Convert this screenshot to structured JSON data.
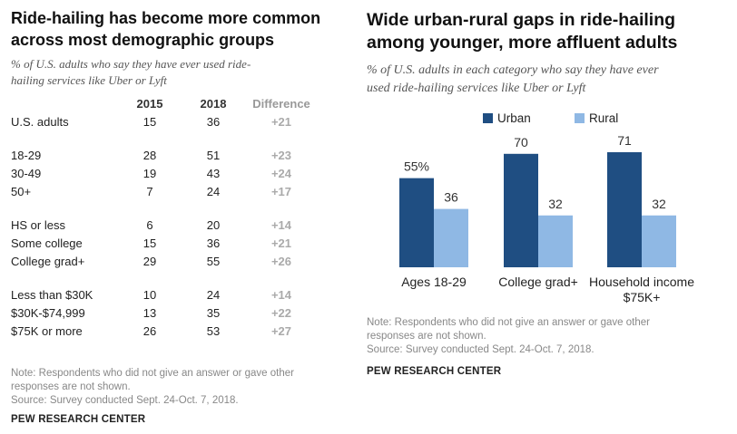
{
  "left": {
    "title_line1": "Ride-hailing has become more common",
    "title_line2": "across most demographic groups",
    "subtitle_line1": "% of U.S. adults who say they have ever used ride-",
    "subtitle_line2": "hailing services like Uber or Lyft",
    "columns": [
      "",
      "2015",
      "2018",
      "Difference"
    ],
    "groups": [
      [
        {
          "label": "U.S. adults",
          "y2015": "15",
          "y2018": "36",
          "diff": "+21"
        }
      ],
      [
        {
          "label": "18-29",
          "y2015": "28",
          "y2018": "51",
          "diff": "+23"
        },
        {
          "label": "30-49",
          "y2015": "19",
          "y2018": "43",
          "diff": "+24"
        },
        {
          "label": "50+",
          "y2015": "7",
          "y2018": "24",
          "diff": "+17"
        }
      ],
      [
        {
          "label": "HS or less",
          "y2015": "6",
          "y2018": "20",
          "diff": "+14"
        },
        {
          "label": "Some college",
          "y2015": "15",
          "y2018": "36",
          "diff": "+21"
        },
        {
          "label": "College grad+",
          "y2015": "29",
          "y2018": "55",
          "diff": "+26"
        }
      ],
      [
        {
          "label": "Less than $30K",
          "y2015": "10",
          "y2018": "24",
          "diff": "+14"
        },
        {
          "label": "$30K-$74,999",
          "y2015": "13",
          "y2018": "35",
          "diff": "+22"
        },
        {
          "label": "$75K or more",
          "y2015": "26",
          "y2018": "53",
          "diff": "+27"
        }
      ]
    ],
    "note_line1": "Note: Respondents who did not give an answer or gave other",
    "note_line2": "responses are not shown.",
    "source": "Source: Survey conducted Sept. 24-Oct. 7, 2018.",
    "brand": "PEW RESEARCH CENTER"
  },
  "right": {
    "title_line1": "Wide urban-rural gaps in ride-hailing",
    "title_line2": "among younger, more affluent adults",
    "subtitle_line1": "% of U.S. adults in each category who say they have ever",
    "subtitle_line2": "used ride-hailing services like Uber or Lyft",
    "note_line1": "Note: Respondents who did not give an answer or gave other",
    "note_line2": "responses are not shown.",
    "source": "Source: Survey conducted Sept. 24-Oct. 7, 2018.",
    "brand": "PEW RESEARCH CENTER"
  },
  "chart_data": [
    {
      "type": "table",
      "columns": [
        "2015",
        "2018",
        "Difference"
      ],
      "rows": [
        {
          "label": "U.S. adults",
          "values": [
            15,
            36,
            21
          ]
        },
        {
          "label": "18-29",
          "values": [
            28,
            51,
            23
          ]
        },
        {
          "label": "30-49",
          "values": [
            19,
            43,
            24
          ]
        },
        {
          "label": "50+",
          "values": [
            7,
            24,
            17
          ]
        },
        {
          "label": "HS or less",
          "values": [
            6,
            20,
            14
          ]
        },
        {
          "label": "Some college",
          "values": [
            15,
            36,
            21
          ]
        },
        {
          "label": "College grad+",
          "values": [
            29,
            55,
            26
          ]
        },
        {
          "label": "Less than $30K",
          "values": [
            10,
            24,
            14
          ]
        },
        {
          "label": "$30K-$74,999",
          "values": [
            13,
            35,
            22
          ]
        },
        {
          "label": "$75K or more",
          "values": [
            26,
            53,
            27
          ]
        }
      ]
    },
    {
      "type": "bar",
      "categories": [
        [
          "Ages 18-29"
        ],
        [
          "College grad+"
        ],
        [
          "Household income",
          "$75K+"
        ]
      ],
      "series": [
        {
          "name": "Urban",
          "values": [
            55,
            70,
            71
          ],
          "labels": [
            "55%",
            "70",
            "71"
          ],
          "color": "#1f4e82"
        },
        {
          "name": "Rural",
          "values": [
            36,
            32,
            32
          ],
          "labels": [
            "36",
            "32",
            "32"
          ],
          "color": "#8fb8e4"
        }
      ],
      "ylim": [
        0,
        100
      ],
      "legend": "top-center",
      "grid": false
    }
  ]
}
